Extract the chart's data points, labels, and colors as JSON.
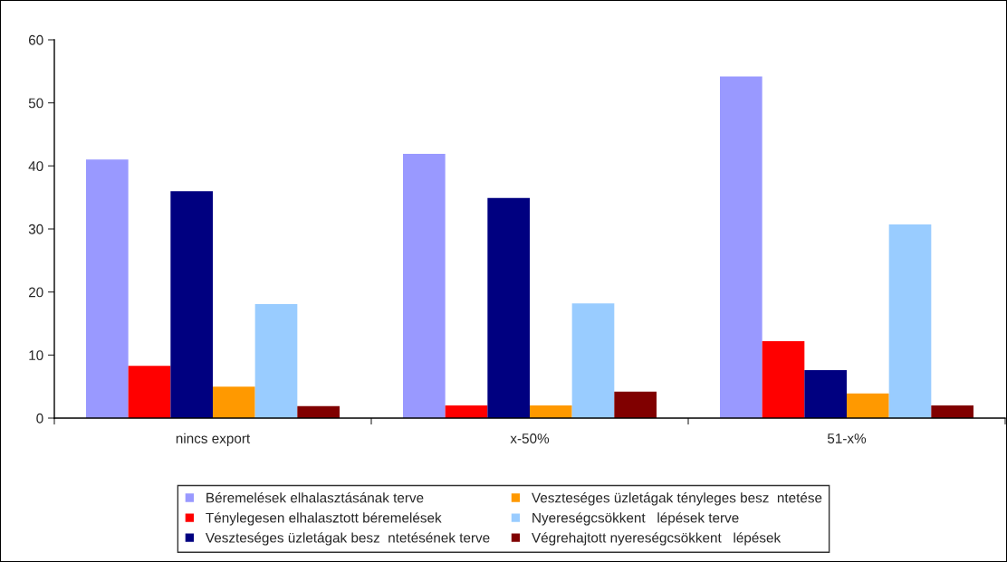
{
  "chart_data": {
    "type": "bar",
    "categories": [
      "nincs export",
      "x-50%",
      "51-x%"
    ],
    "series": [
      {
        "name": "Béremelések elhalasztásának terve",
        "color": "#9999ff",
        "values": [
          41.0,
          41.9,
          54.2
        ]
      },
      {
        "name": "Ténylegesen elhalasztott béremelések",
        "color": "#ff0000",
        "values": [
          8.3,
          2.0,
          12.2
        ]
      },
      {
        "name": "Veszteséges üzletágak besz  ntetésének terve",
        "color": "#000080",
        "values": [
          36.0,
          34.9,
          7.6
        ]
      },
      {
        "name": "Veszteséges üzletágak tényleges besz  ntetése",
        "color": "#ff9900",
        "values": [
          5.0,
          2.0,
          3.9
        ]
      },
      {
        "name": "Nyereségcsökkent   lépések terve",
        "color": "#99ccff",
        "values": [
          18.1,
          18.2,
          30.7
        ]
      },
      {
        "name": "Végrehajtott nyereségcsökkent   lépések",
        "color": "#800000",
        "values": [
          1.9,
          4.2,
          2.0
        ]
      }
    ],
    "ylim": [
      0,
      60
    ],
    "yticks": [
      0,
      10,
      20,
      30,
      40,
      50,
      60
    ],
    "grid": false,
    "legend": "bottom"
  }
}
